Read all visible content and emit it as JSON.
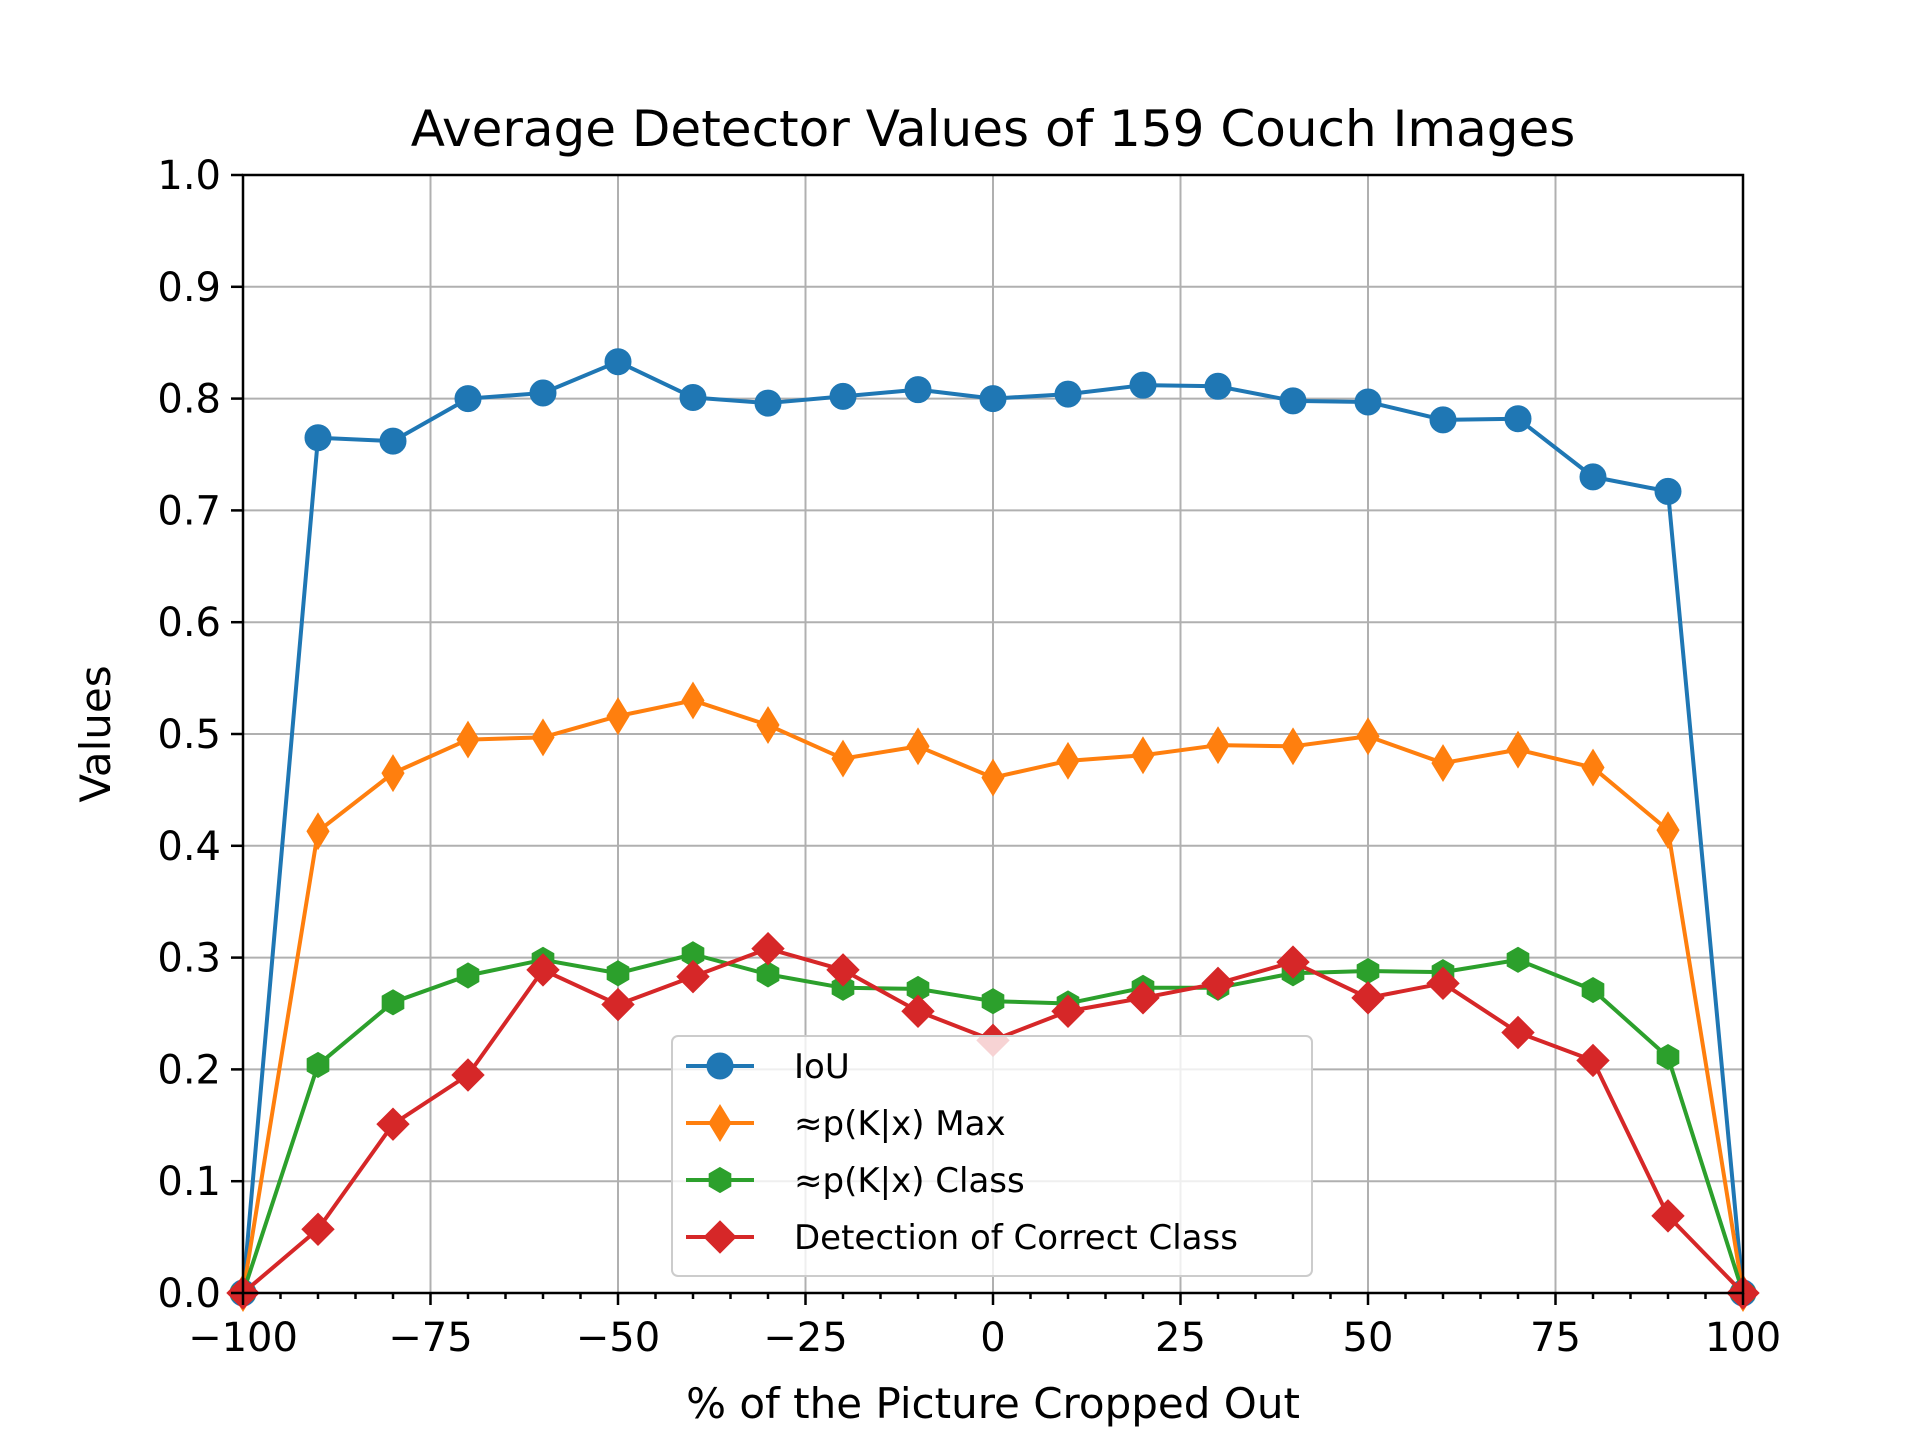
{
  "chart_data": {
    "type": "line",
    "title": "Average Detector Values of 159 Couch Images",
    "xlabel": "% of the Picture Cropped Out",
    "ylabel": "Values",
    "xlim": [
      -100,
      100
    ],
    "ylim": [
      0,
      1
    ],
    "grid": true,
    "legend_position": "lower-center",
    "x_ticks": [
      -100,
      -75,
      -50,
      -25,
      0,
      25,
      50,
      75,
      100
    ],
    "x_tick_labels": [
      "−100",
      "−75",
      "−50",
      "−25",
      "0",
      "25",
      "50",
      "75",
      "100"
    ],
    "y_ticks": [
      0,
      0.1,
      0.2,
      0.3,
      0.4,
      0.5,
      0.6,
      0.7,
      0.8,
      0.9,
      1.0
    ],
    "y_tick_labels": [
      "0.0",
      "0.1",
      "0.2",
      "0.3",
      "0.4",
      "0.5",
      "0.6",
      "0.7",
      "0.8",
      "0.9",
      "1.0"
    ],
    "x": [
      -100,
      -90,
      -80,
      -70,
      -60,
      -50,
      -40,
      -30,
      -20,
      -10,
      0,
      10,
      20,
      30,
      40,
      50,
      60,
      70,
      80,
      90,
      100
    ],
    "series": [
      {
        "name": "IoU",
        "color": "#1f77b4",
        "marker": "circle",
        "values": [
          0.0,
          0.765,
          0.762,
          0.8,
          0.805,
          0.833,
          0.801,
          0.796,
          0.802,
          0.808,
          0.8,
          0.804,
          0.812,
          0.811,
          0.798,
          0.797,
          0.781,
          0.782,
          0.73,
          0.717,
          0.0
        ]
      },
      {
        "name": "≈p(K|x) Max",
        "color": "#ff7f0e",
        "marker": "thin-diamond",
        "values": [
          0.0,
          0.413,
          0.465,
          0.495,
          0.497,
          0.516,
          0.53,
          0.508,
          0.478,
          0.489,
          0.461,
          0.476,
          0.481,
          0.49,
          0.489,
          0.498,
          0.474,
          0.486,
          0.47,
          0.414,
          0.0
        ]
      },
      {
        "name": "≈p(K|x) Class",
        "color": "#2ca02c",
        "marker": "hexagon",
        "values": [
          0.0,
          0.204,
          0.26,
          0.284,
          0.298,
          0.286,
          0.303,
          0.285,
          0.273,
          0.272,
          0.261,
          0.259,
          0.273,
          0.273,
          0.286,
          0.288,
          0.287,
          0.298,
          0.271,
          0.211,
          0.0
        ]
      },
      {
        "name": "Detection of Correct Class",
        "color": "#d62728",
        "marker": "diamond",
        "values": [
          0.0,
          0.057,
          0.151,
          0.195,
          0.289,
          0.258,
          0.283,
          0.308,
          0.289,
          0.252,
          0.226,
          0.252,
          0.264,
          0.277,
          0.296,
          0.264,
          0.277,
          0.233,
          0.208,
          0.069,
          0.0
        ]
      }
    ]
  }
}
